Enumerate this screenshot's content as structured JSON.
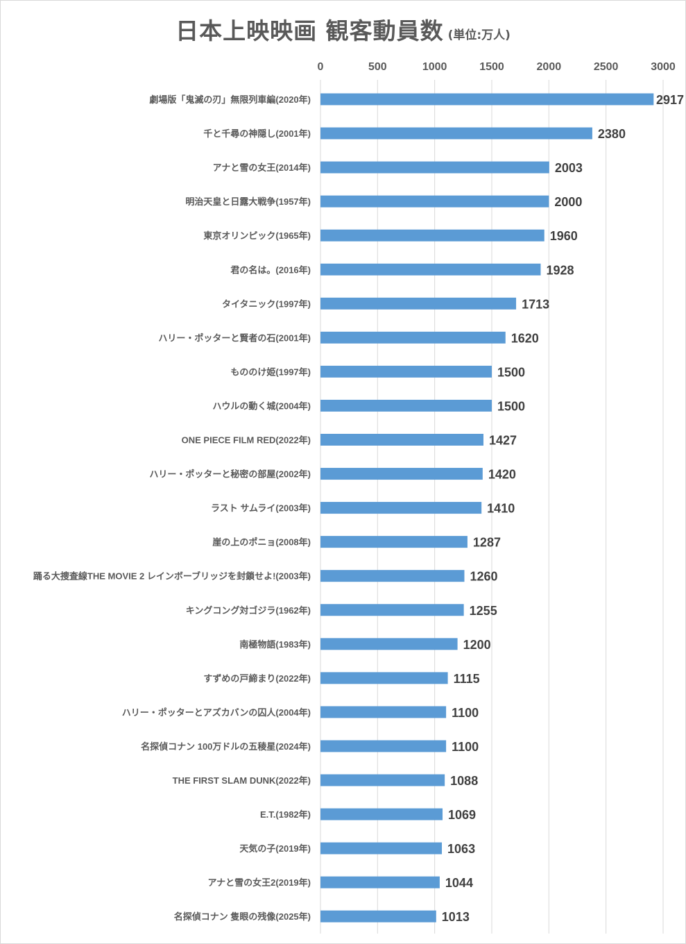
{
  "chart_data": {
    "type": "bar",
    "orientation": "horizontal",
    "title": "日本上映映画 観客動員数",
    "subtitle": "(単位:万人)",
    "xlim": [
      0,
      3000
    ],
    "xticks": [
      0,
      500,
      1000,
      1500,
      2000,
      2500,
      3000
    ],
    "x_axis_position": "top",
    "grid": true,
    "bar_color": "#5b9bd5",
    "categories": [
      "劇場版「鬼滅の刃」無限列車編(2020年)",
      "千と千尋の神隠し(2001年)",
      "アナと雪の女王(2014年)",
      "明治天皇と日露大戦争(1957年)",
      "東京オリンピック(1965年)",
      "君の名は。(2016年)",
      "タイタニック(1997年)",
      "ハリー・ポッターと賢者の石(2001年)",
      "もののけ姫(1997年)",
      "ハウルの動く城(2004年)",
      "ONE PIECE FILM RED(2022年)",
      "ハリー・ポッターと秘密の部屋(2002年)",
      "ラスト サムライ(2003年)",
      "崖の上のポニョ(2008年)",
      "踊る大捜査線THE MOVIE 2 レインボーブリッジを封鎖せよ!(2003年)",
      "キングコング対ゴジラ(1962年)",
      "南極物語(1983年)",
      "すずめの戸締まり(2022年)",
      "ハリー・ポッターとアズカバンの囚人(2004年)",
      "名探偵コナン 100万ドルの五稜星(2024年)",
      "THE FIRST SLAM DUNK(2022年)",
      "E.T.(1982年)",
      "天気の子(2019年)",
      "アナと雪の女王2(2019年)",
      "名探偵コナン 隻眼の残像(2025年)"
    ],
    "values": [
      2917,
      2380,
      2003,
      2000,
      1960,
      1928,
      1713,
      1620,
      1500,
      1500,
      1427,
      1420,
      1410,
      1287,
      1260,
      1255,
      1200,
      1115,
      1100,
      1100,
      1088,
      1069,
      1063,
      1044,
      1013
    ]
  }
}
